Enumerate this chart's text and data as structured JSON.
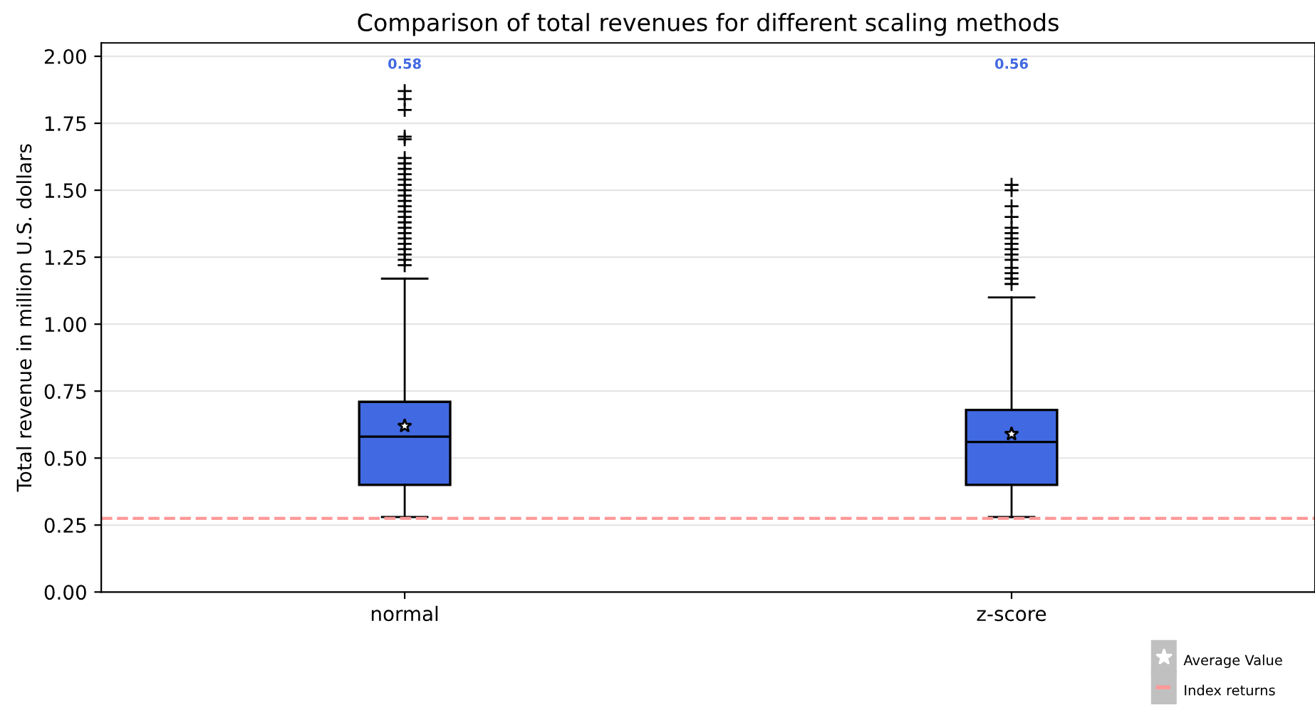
{
  "chart_data": {
    "type": "box",
    "title": "Comparison of total revenues for different scaling methods",
    "ylabel": "Total revenue in million U.S. dollars",
    "categories": [
      "normal",
      "z-score"
    ],
    "series": [
      {
        "name": "Average Value",
        "color": "#4169e1",
        "boxes": [
          {
            "low": 0.28,
            "q1": 0.4,
            "median": 0.58,
            "q3": 0.71,
            "high": 1.17,
            "mean": 0.62,
            "outliers": [
              1.22,
              1.24,
              1.26,
              1.28,
              1.3,
              1.32,
              1.34,
              1.36,
              1.38,
              1.4,
              1.42,
              1.44,
              1.46,
              1.48,
              1.5,
              1.52,
              1.54,
              1.56,
              1.58,
              1.6,
              1.62,
              1.69,
              1.7,
              1.8,
              1.84,
              1.87
            ]
          },
          {
            "low": 0.28,
            "q1": 0.4,
            "median": 0.56,
            "q3": 0.68,
            "high": 1.1,
            "mean": 0.59,
            "outliers": [
              1.15,
              1.17,
              1.19,
              1.21,
              1.24,
              1.26,
              1.28,
              1.3,
              1.32,
              1.34,
              1.36,
              1.4,
              1.44,
              1.5,
              1.52
            ]
          }
        ]
      }
    ],
    "ref_lines": [
      {
        "axis": "y",
        "value": 0.275,
        "label": "Index returns",
        "color": "#ff9999",
        "line_style": "dashed"
      }
    ],
    "annotations": [
      "0.58",
      "0.56"
    ],
    "ylim": [
      0,
      2.05
    ],
    "yticks": [
      {
        "value": 0,
        "label": "0.00"
      },
      {
        "value": 0.25,
        "label": "0.25"
      },
      {
        "value": 0.5,
        "label": "0.50"
      },
      {
        "value": 0.75,
        "label": "0.75"
      },
      {
        "value": 1,
        "label": "1.00"
      },
      {
        "value": 1.25,
        "label": "1.25"
      },
      {
        "value": 1.5,
        "label": "1.50"
      },
      {
        "value": 1.75,
        "label": "1.75"
      },
      {
        "value": 2,
        "label": "2.00"
      }
    ],
    "grid": "y",
    "legend": "bottom right",
    "marker": "star"
  }
}
